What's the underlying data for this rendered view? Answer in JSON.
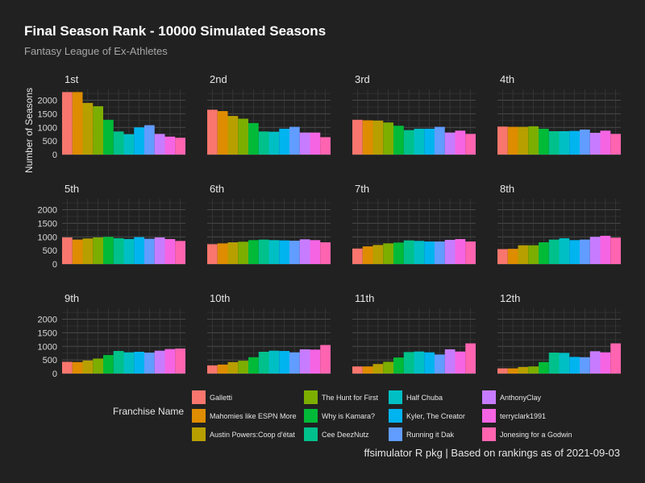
{
  "chart_data": {
    "type": "bar",
    "title": "Final Season Rank - 10000 Simulated Seasons",
    "subtitle": "Fantasy League of Ex-Athletes",
    "ylabel": "Number of Seasons",
    "xlabel": "",
    "ylim": [
      0,
      2400
    ],
    "yticks": [
      "0",
      "500",
      "1000",
      "1500",
      "2000"
    ],
    "legend_title": "Franchise Name",
    "legend_position": "bottom",
    "caption": "ffsimulator R pkg | Based on rankings as of 2021-09-03",
    "grid": true,
    "categories": [
      "Galletti",
      "Mahomies like ESPN More",
      "Austin Powers:Coop d'état",
      "The Hunt for First",
      "Why is Kamara?",
      "Cee DeezNutz",
      "Half Chuba",
      "Kyler, The Creator",
      "Running it Dak",
      "AnthonyClay",
      "terryclark1991",
      "Jonesing for a Godwin"
    ],
    "colors": [
      "#F8766D",
      "#DE8C00",
      "#B79F00",
      "#7CAE00",
      "#00BA38",
      "#00C08B",
      "#00BFC4",
      "#00B4F0",
      "#619CFF",
      "#C77CFF",
      "#F564E3",
      "#FF64B0"
    ],
    "facets": [
      {
        "label": "1st",
        "values": [
          2300,
          2300,
          1900,
          1780,
          1280,
          850,
          750,
          1000,
          1080,
          760,
          660,
          620
        ]
      },
      {
        "label": "2nd",
        "values": [
          1650,
          1600,
          1420,
          1320,
          1160,
          850,
          840,
          950,
          1020,
          810,
          810,
          640
        ]
      },
      {
        "label": "3rd",
        "values": [
          1280,
          1260,
          1250,
          1180,
          1060,
          900,
          950,
          950,
          1020,
          810,
          880,
          760
        ]
      },
      {
        "label": "4th",
        "values": [
          1030,
          1020,
          1020,
          1040,
          950,
          860,
          860,
          870,
          920,
          800,
          880,
          760
        ]
      },
      {
        "label": "5th",
        "values": [
          980,
          900,
          940,
          980,
          1000,
          950,
          920,
          990,
          930,
          980,
          920,
          850
        ]
      },
      {
        "label": "6th",
        "values": [
          730,
          760,
          800,
          820,
          880,
          900,
          880,
          870,
          860,
          910,
          880,
          800
        ]
      },
      {
        "label": "7th",
        "values": [
          570,
          650,
          700,
          760,
          790,
          870,
          850,
          830,
          830,
          890,
          920,
          830
        ]
      },
      {
        "label": "8th",
        "values": [
          550,
          560,
          690,
          690,
          800,
          900,
          950,
          880,
          900,
          1000,
          1040,
          970
        ]
      },
      {
        "label": "9th",
        "values": [
          430,
          420,
          480,
          550,
          680,
          830,
          780,
          800,
          770,
          840,
          900,
          920
        ]
      },
      {
        "label": "10th",
        "values": [
          300,
          330,
          420,
          470,
          600,
          800,
          840,
          830,
          780,
          890,
          880,
          1050
        ]
      },
      {
        "label": "11th",
        "values": [
          260,
          260,
          350,
          430,
          590,
          790,
          810,
          780,
          700,
          890,
          810,
          1110
        ]
      },
      {
        "label": "12th",
        "values": [
          190,
          190,
          240,
          260,
          420,
          770,
          760,
          610,
          600,
          820,
          780,
          1110
        ]
      }
    ]
  }
}
